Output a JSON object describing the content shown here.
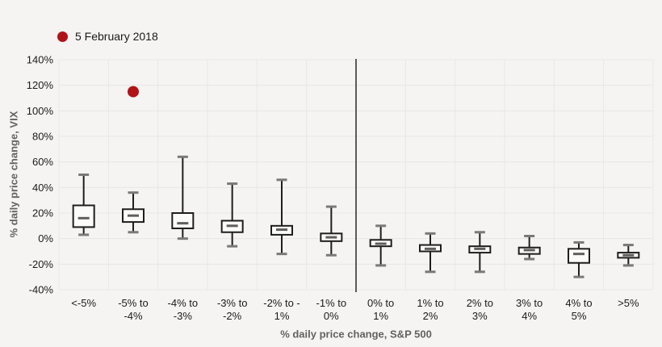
{
  "legend": {
    "label": "5 February 2018"
  },
  "axes": {
    "y_title": "% daily price change, VIX",
    "x_title": "% daily price change, S&P 500"
  },
  "colors": {
    "background": "#f5f4f2",
    "gridline": "#e8e7e4",
    "box_stroke": "#1f1e1c",
    "box_fill": "#fbfbfa",
    "median": "#5f5e5c",
    "whisker_cap": "#7a7977",
    "divider": "#5a5a58",
    "marker_red": "#b01218",
    "tick_text": "#1b1b1b",
    "axis_title_text": "#64625f"
  },
  "chart_data": {
    "type": "boxplot",
    "title": "",
    "xlabel": "% daily price change, S&P 500",
    "ylabel": "% daily price change, VIX",
    "ylim": [
      -40,
      140
    ],
    "y_tick_step": 20,
    "y_tick_labels": [
      "140%",
      "120%",
      "100%",
      "80%",
      "60%",
      "40%",
      "20%",
      "0%",
      "-20%",
      "-40%"
    ],
    "grid": true,
    "legend_position": "top-left",
    "divider_index": 6,
    "categories": [
      "<-5%",
      "-5% to\n-4%",
      "-4% to\n-3%",
      "-3% to\n-2%",
      "-2% to -\n1%",
      "-1% to\n0%",
      "0% to\n1%",
      "1% to\n2%",
      "2% to\n3%",
      "3% to\n4%",
      "4% to\n5%",
      ">5%"
    ],
    "boxes": [
      {
        "whisker_low": 3,
        "q1": 9,
        "median": 16,
        "q3": 26,
        "whisker_high": 50
      },
      {
        "whisker_low": 5,
        "q1": 13,
        "median": 18,
        "q3": 23,
        "whisker_high": 36
      },
      {
        "whisker_low": 0,
        "q1": 8,
        "median": 12,
        "q3": 20,
        "whisker_high": 64
      },
      {
        "whisker_low": -6,
        "q1": 5,
        "median": 10,
        "q3": 14,
        "whisker_high": 43
      },
      {
        "whisker_low": -12,
        "q1": 3,
        "median": 7,
        "q3": 10,
        "whisker_high": 46
      },
      {
        "whisker_low": -13,
        "q1": -2,
        "median": 1,
        "q3": 4,
        "whisker_high": 25
      },
      {
        "whisker_low": -21,
        "q1": -6,
        "median": -4,
        "q3": -1,
        "whisker_high": 10
      },
      {
        "whisker_low": -26,
        "q1": -10,
        "median": -8,
        "q3": -5,
        "whisker_high": 4
      },
      {
        "whisker_low": -26,
        "q1": -11,
        "median": -8,
        "q3": -6,
        "whisker_high": 5
      },
      {
        "whisker_low": -16,
        "q1": -12,
        "median": -9,
        "q3": -7,
        "whisker_high": 2
      },
      {
        "whisker_low": -30,
        "q1": -19,
        "median": -12,
        "q3": -8,
        "whisker_high": -3
      },
      {
        "whisker_low": -21,
        "q1": -15,
        "median": -13,
        "q3": -11,
        "whisker_high": -5
      }
    ],
    "outlier_point": {
      "series": "5 February 2018",
      "category": "-5% to -4%",
      "category_index": 1,
      "value": 115
    }
  }
}
